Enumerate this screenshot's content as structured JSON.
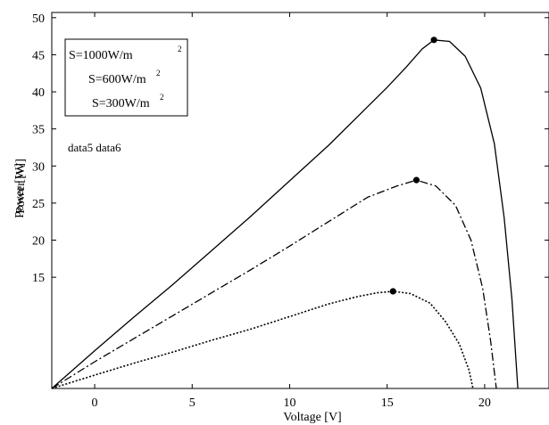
{
  "chart_data": {
    "type": "line",
    "title": "",
    "xlabel": "Voltage [V]",
    "ylabel": "Power [W]",
    "ylabel_overprint": "Power [W]",
    "xlim": [
      -2.2,
      23.3
    ],
    "ylim": [
      0,
      50.7
    ],
    "xticks": [
      0,
      5,
      10,
      15,
      20
    ],
    "yticks": [
      15,
      20,
      25,
      30,
      35,
      40,
      45,
      50
    ],
    "ytick_labels": [
      "15",
      "20",
      "25",
      "30",
      "35",
      "40",
      "45",
      "50"
    ],
    "grid": false,
    "legend": {
      "placement": "top-left",
      "entries": [
        {
          "prefix": "S=1000W/m",
          "sup": "2"
        },
        {
          "prefix": "S=600W/m",
          "sup": "2"
        },
        {
          "prefix": "S=300W/m",
          "sup": "2"
        }
      ]
    },
    "annotations": [
      "data5 data6"
    ],
    "series": [
      {
        "style": "solid",
        "x": [
          -2.2,
          0,
          2,
          4,
          6,
          8,
          10,
          12,
          14,
          15,
          16,
          16.8,
          17.4,
          18.2,
          19,
          19.8,
          20.5,
          21,
          21.4,
          21.7
        ],
        "y": [
          0,
          5.1,
          9.6,
          14.0,
          18.6,
          23.2,
          28.0,
          32.8,
          38.0,
          40.6,
          43.4,
          45.8,
          47.0,
          46.8,
          44.8,
          40.5,
          33.0,
          23.0,
          12.0,
          0
        ],
        "mpp": {
          "x": 17.4,
          "y": 47.0
        }
      },
      {
        "style": "dashdot",
        "x": [
          -2.2,
          0,
          2,
          4,
          6,
          8,
          10,
          12,
          14,
          15.5,
          16.5,
          17.5,
          18.5,
          19.3,
          19.9,
          20.3,
          20.6
        ],
        "y": [
          0,
          3.6,
          6.7,
          9.8,
          12.9,
          16.0,
          19.2,
          22.5,
          25.8,
          27.3,
          28.1,
          27.3,
          24.7,
          20.0,
          13.5,
          6.5,
          0
        ],
        "mpp": {
          "x": 16.5,
          "y": 28.1
        }
      },
      {
        "style": "dotted",
        "x": [
          -2.2,
          0,
          2,
          4,
          6,
          8,
          10,
          12,
          13.5,
          14.5,
          15.3,
          16.2,
          17.2,
          18.0,
          18.7,
          19.2,
          19.4
        ],
        "y": [
          0,
          1.8,
          3.4,
          4.9,
          6.5,
          8.0,
          9.7,
          11.4,
          12.4,
          12.9,
          13.1,
          12.8,
          11.5,
          9.0,
          6.0,
          2.5,
          0
        ],
        "mpp": {
          "x": 15.3,
          "y": 13.1
        }
      }
    ]
  }
}
